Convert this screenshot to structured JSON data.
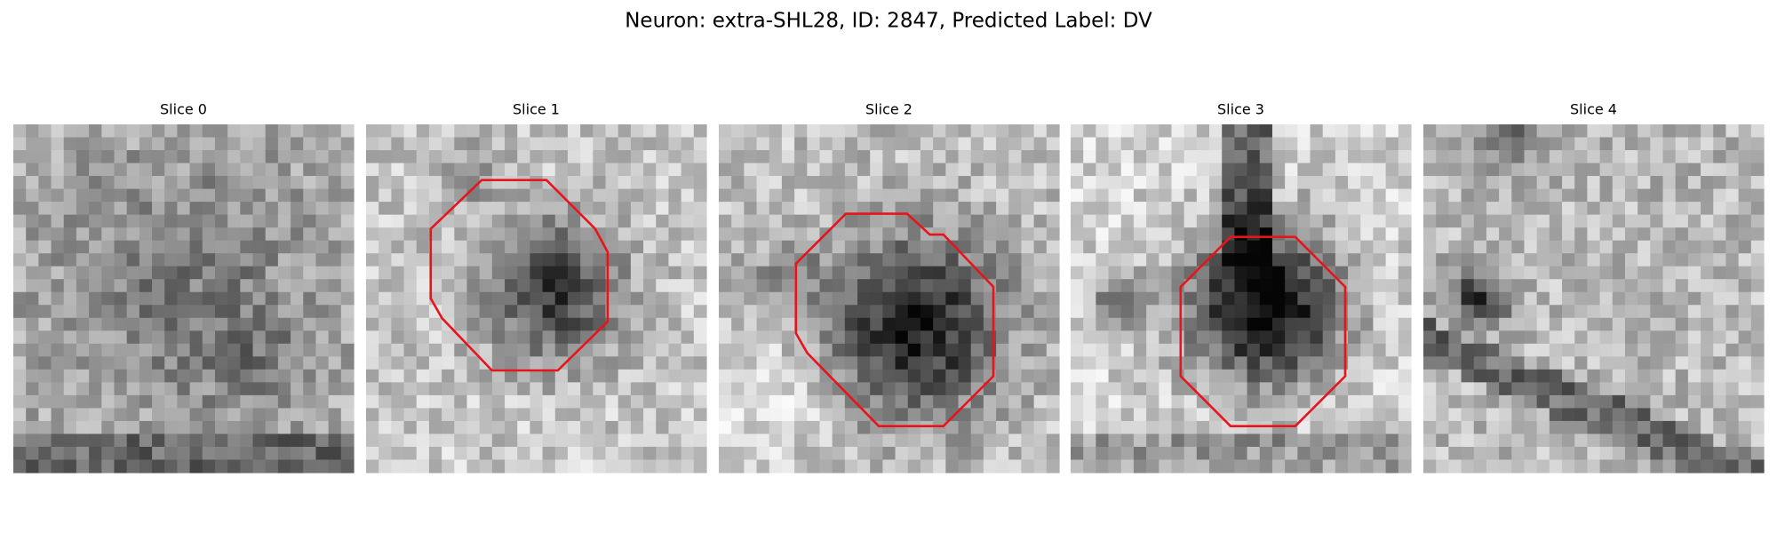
{
  "figure": {
    "title": "Neuron: extra-SHL28, ID: 2847, Predicted Label: DV",
    "panels": [
      {
        "title": "Slice 0"
      },
      {
        "title": "Slice 1"
      },
      {
        "title": "Slice 2"
      },
      {
        "title": "Slice 3"
      },
      {
        "title": "Slice 4"
      }
    ]
  }
}
